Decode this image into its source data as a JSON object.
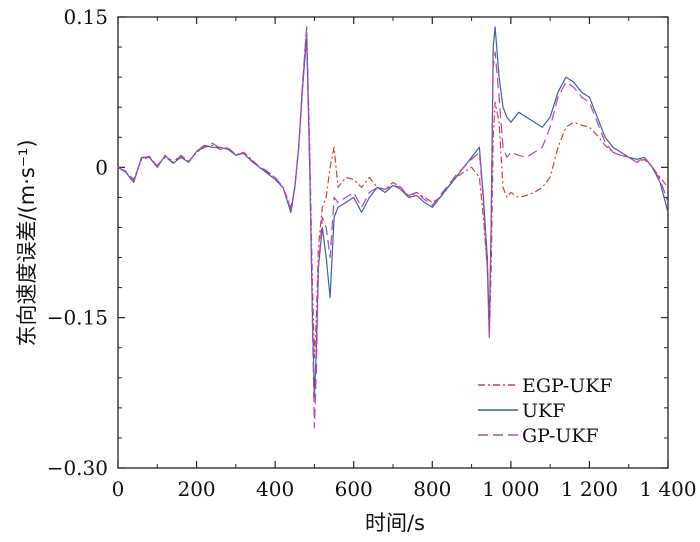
{
  "chart_data": {
    "type": "line",
    "xlabel": "时间/s",
    "ylabel": "东向速度误差/(m·s⁻¹)",
    "xlim": [
      0,
      1400
    ],
    "ylim": [
      -0.3,
      0.15
    ],
    "xticks": [
      0,
      200,
      400,
      600,
      800,
      1000,
      1200,
      1400
    ],
    "xtick_labels": [
      "0",
      "200",
      "400",
      "600",
      "800",
      "1 000",
      "1 200",
      "1 400"
    ],
    "yticks": [
      -0.3,
      -0.15,
      0,
      0.15
    ],
    "ytick_labels": [
      "−0.30",
      "−0.15",
      "0",
      "0.15"
    ],
    "grid": false,
    "legend_position": "bottom-right",
    "series": [
      {
        "name": "EGP-UKF",
        "color": "#e03a3a",
        "dash": "7 3 2 3",
        "x": [
          0,
          20,
          40,
          60,
          80,
          100,
          120,
          140,
          160,
          180,
          200,
          220,
          240,
          260,
          280,
          300,
          320,
          340,
          360,
          380,
          400,
          420,
          440,
          450,
          460,
          470,
          480,
          488,
          495,
          500,
          505,
          510,
          520,
          530,
          540,
          550,
          560,
          580,
          600,
          620,
          640,
          660,
          680,
          700,
          720,
          740,
          760,
          780,
          800,
          820,
          840,
          860,
          880,
          900,
          920,
          930,
          940,
          945,
          950,
          955,
          960,
          970,
          980,
          990,
          1000,
          1020,
          1040,
          1060,
          1080,
          1100,
          1120,
          1140,
          1160,
          1180,
          1200,
          1220,
          1240,
          1260,
          1280,
          1300,
          1320,
          1340,
          1360,
          1380,
          1400
        ],
        "y": [
          0,
          -0.005,
          -0.012,
          0.008,
          0.01,
          0.002,
          0.01,
          0.005,
          0.012,
          0.006,
          0.015,
          0.02,
          0.022,
          0.018,
          0.02,
          0.012,
          0.015,
          0.008,
          0.0,
          -0.005,
          -0.01,
          -0.02,
          -0.04,
          -0.02,
          0.02,
          0.08,
          0.14,
          0.02,
          -0.12,
          -0.19,
          -0.15,
          -0.08,
          -0.04,
          -0.03,
          0.0,
          0.02,
          -0.02,
          -0.01,
          -0.012,
          -0.02,
          -0.01,
          -0.02,
          -0.022,
          -0.015,
          -0.02,
          -0.03,
          -0.025,
          -0.03,
          -0.035,
          -0.03,
          -0.02,
          -0.01,
          -0.005,
          0.0,
          -0.01,
          -0.05,
          -0.1,
          -0.17,
          -0.1,
          0.03,
          0.065,
          0.045,
          -0.02,
          -0.03,
          -0.025,
          -0.03,
          -0.028,
          -0.025,
          -0.02,
          -0.01,
          0.02,
          0.04,
          0.045,
          0.042,
          0.04,
          0.032,
          0.022,
          0.015,
          0.012,
          0.01,
          0.005,
          0.008,
          0.0,
          -0.01,
          -0.02
        ]
      },
      {
        "name": "UKF",
        "color": "#3a5fae",
        "dash": "",
        "x": [
          0,
          20,
          40,
          60,
          80,
          100,
          120,
          140,
          160,
          180,
          200,
          220,
          240,
          260,
          280,
          300,
          320,
          340,
          360,
          380,
          400,
          420,
          440,
          450,
          460,
          470,
          480,
          488,
          495,
          500,
          505,
          510,
          520,
          530,
          540,
          550,
          560,
          580,
          600,
          620,
          640,
          660,
          680,
          700,
          720,
          740,
          760,
          780,
          800,
          820,
          840,
          860,
          880,
          900,
          920,
          930,
          940,
          945,
          950,
          955,
          960,
          970,
          980,
          990,
          1000,
          1020,
          1040,
          1060,
          1080,
          1100,
          1120,
          1140,
          1160,
          1180,
          1200,
          1220,
          1240,
          1260,
          1280,
          1300,
          1320,
          1340,
          1360,
          1380,
          1400
        ],
        "y": [
          0,
          -0.005,
          -0.015,
          0.01,
          0.01,
          0.0,
          0.012,
          0.004,
          0.01,
          0.005,
          0.016,
          0.022,
          0.02,
          0.02,
          0.018,
          0.012,
          0.014,
          0.006,
          0.0,
          -0.006,
          -0.012,
          -0.02,
          -0.045,
          -0.02,
          0.02,
          0.08,
          0.13,
          0.0,
          -0.15,
          -0.23,
          -0.18,
          -0.1,
          -0.06,
          -0.09,
          -0.13,
          -0.05,
          -0.04,
          -0.035,
          -0.03,
          -0.045,
          -0.03,
          -0.02,
          -0.025,
          -0.018,
          -0.022,
          -0.03,
          -0.028,
          -0.035,
          -0.04,
          -0.03,
          -0.02,
          -0.01,
          0.0,
          0.01,
          0.02,
          -0.03,
          -0.09,
          -0.16,
          -0.05,
          0.12,
          0.14,
          0.09,
          0.06,
          0.05,
          0.045,
          0.055,
          0.05,
          0.045,
          0.04,
          0.05,
          0.075,
          0.09,
          0.085,
          0.075,
          0.07,
          0.05,
          0.03,
          0.02,
          0.015,
          0.01,
          0.008,
          0.01,
          0.0,
          -0.015,
          -0.045
        ]
      },
      {
        "name": "GP-UKF",
        "color": "#b046b8",
        "dash": "10 5",
        "x": [
          0,
          20,
          40,
          60,
          80,
          100,
          120,
          140,
          160,
          180,
          200,
          220,
          240,
          260,
          280,
          300,
          320,
          340,
          360,
          380,
          400,
          420,
          440,
          450,
          460,
          470,
          480,
          488,
          495,
          500,
          505,
          510,
          520,
          530,
          540,
          550,
          560,
          580,
          600,
          620,
          640,
          660,
          680,
          700,
          720,
          740,
          760,
          780,
          800,
          820,
          840,
          860,
          880,
          900,
          920,
          930,
          940,
          945,
          950,
          955,
          960,
          970,
          980,
          990,
          1000,
          1020,
          1040,
          1060,
          1080,
          1100,
          1120,
          1140,
          1160,
          1180,
          1200,
          1220,
          1240,
          1260,
          1280,
          1300,
          1320,
          1340,
          1360,
          1380,
          1400
        ],
        "y": [
          0,
          -0.004,
          -0.013,
          0.009,
          0.011,
          0.001,
          0.011,
          0.006,
          0.011,
          0.006,
          0.015,
          0.021,
          0.024,
          0.019,
          0.019,
          0.013,
          0.014,
          0.007,
          0.001,
          -0.004,
          -0.01,
          -0.02,
          -0.042,
          -0.02,
          0.02,
          0.085,
          0.14,
          0.01,
          -0.16,
          -0.26,
          -0.2,
          -0.1,
          -0.05,
          -0.06,
          -0.09,
          -0.03,
          -0.035,
          -0.03,
          -0.025,
          -0.04,
          -0.025,
          -0.02,
          -0.022,
          -0.018,
          -0.02,
          -0.028,
          -0.025,
          -0.032,
          -0.038,
          -0.028,
          -0.018,
          -0.008,
          0.0,
          0.008,
          0.015,
          -0.035,
          -0.1,
          -0.17,
          -0.06,
          0.1,
          0.115,
          0.07,
          0.02,
          0.01,
          0.015,
          0.012,
          0.01,
          0.015,
          0.02,
          0.04,
          0.07,
          0.085,
          0.08,
          0.07,
          0.065,
          0.045,
          0.025,
          0.015,
          0.012,
          0.01,
          0.005,
          0.01,
          0.0,
          -0.012,
          -0.035
        ]
      }
    ]
  }
}
